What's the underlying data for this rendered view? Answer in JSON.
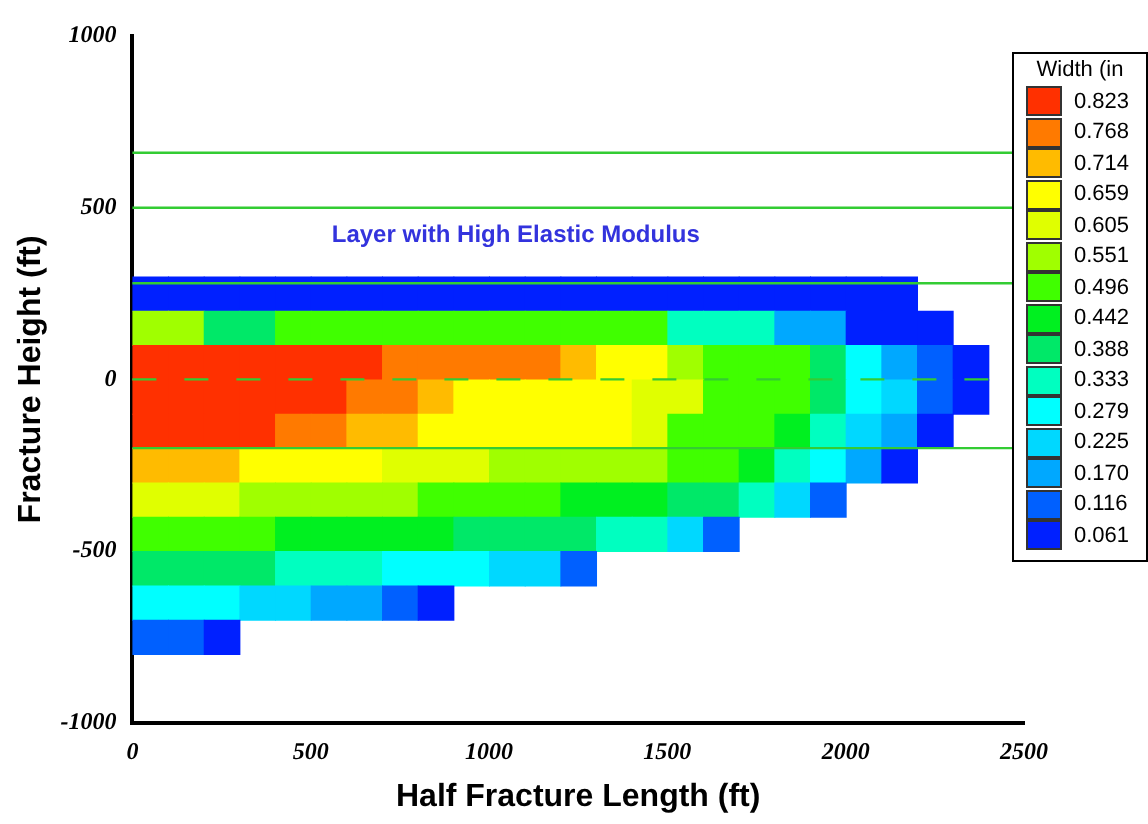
{
  "chart_data": {
    "type": "heatmap",
    "xlabel": "Half Fracture Length (ft)",
    "ylabel": "Fracture Height (ft)",
    "clabel": "Width (in",
    "x": [
      50,
      150,
      250,
      350,
      450,
      550,
      650,
      750,
      850,
      950,
      1050,
      1150,
      1250,
      1350,
      1450,
      1550,
      1650,
      1750,
      1850,
      1950,
      2050,
      2150,
      2250,
      2350
    ],
    "y": [
      250,
      150,
      50,
      -50,
      -150,
      -250,
      -350,
      -450,
      -550,
      -650,
      -750
    ],
    "cells": [
      [
        0.061,
        0.061,
        0.061,
        0.061,
        0.061,
        0.061,
        0.061,
        0.061,
        0.061,
        0.061,
        0.061,
        0.061,
        0.061,
        0.061,
        0.061,
        0.061,
        0.061,
        0.061,
        0.061,
        0.061,
        0.061,
        0.061,
        null,
        null
      ],
      [
        0.551,
        0.551,
        0.388,
        0.388,
        0.496,
        0.496,
        0.496,
        0.496,
        0.496,
        0.496,
        0.496,
        0.496,
        0.496,
        0.496,
        0.496,
        0.333,
        0.333,
        0.333,
        0.17,
        0.17,
        0.061,
        0.061,
        0.061,
        null
      ],
      [
        0.823,
        0.823,
        0.823,
        0.823,
        0.823,
        0.823,
        0.823,
        0.768,
        0.768,
        0.768,
        0.768,
        0.768,
        0.714,
        0.659,
        0.659,
        0.551,
        0.496,
        0.496,
        0.496,
        0.388,
        0.279,
        0.17,
        0.116,
        0.061
      ],
      [
        0.823,
        0.823,
        0.823,
        0.823,
        0.823,
        0.823,
        0.768,
        0.768,
        0.714,
        0.659,
        0.659,
        0.659,
        0.659,
        0.659,
        0.605,
        0.605,
        0.496,
        0.496,
        0.496,
        0.388,
        0.279,
        0.225,
        0.116,
        0.061
      ],
      [
        0.823,
        0.823,
        0.823,
        0.823,
        0.768,
        0.768,
        0.714,
        0.714,
        0.659,
        0.659,
        0.659,
        0.659,
        0.659,
        0.659,
        0.605,
        0.496,
        0.496,
        0.496,
        0.442,
        0.333,
        0.225,
        0.17,
        0.061,
        null
      ],
      [
        0.714,
        0.714,
        0.714,
        0.659,
        0.659,
        0.659,
        0.659,
        0.605,
        0.605,
        0.605,
        0.551,
        0.551,
        0.551,
        0.551,
        0.551,
        0.496,
        0.496,
        0.442,
        0.333,
        0.279,
        0.17,
        0.061,
        null,
        null
      ],
      [
        0.605,
        0.605,
        0.605,
        0.551,
        0.551,
        0.551,
        0.551,
        0.551,
        0.496,
        0.496,
        0.496,
        0.496,
        0.442,
        0.442,
        0.442,
        0.388,
        0.388,
        0.333,
        0.225,
        0.116,
        null,
        null,
        null,
        null
      ],
      [
        0.496,
        0.496,
        0.496,
        0.496,
        0.442,
        0.442,
        0.442,
        0.442,
        0.442,
        0.388,
        0.388,
        0.388,
        0.388,
        0.333,
        0.333,
        0.225,
        0.116,
        null,
        null,
        null,
        null,
        null,
        null,
        null
      ],
      [
        0.388,
        0.388,
        0.388,
        0.388,
        0.333,
        0.333,
        0.333,
        0.279,
        0.279,
        0.279,
        0.225,
        0.225,
        0.116,
        null,
        null,
        null,
        null,
        null,
        null,
        null,
        null,
        null,
        null,
        null
      ],
      [
        0.279,
        0.279,
        0.279,
        0.225,
        0.225,
        0.17,
        0.17,
        0.116,
        0.061,
        null,
        null,
        null,
        null,
        null,
        null,
        null,
        null,
        null,
        null,
        null,
        null,
        null,
        null,
        null
      ],
      [
        0.116,
        0.116,
        0.061,
        null,
        null,
        null,
        null,
        null,
        null,
        null,
        null,
        null,
        null,
        null,
        null,
        null,
        null,
        null,
        null,
        null,
        null,
        null,
        null,
        null
      ]
    ],
    "cticks": [
      0.061,
      0.116,
      {
        "value": 0.17,
        "label": "0.170"
      },
      0.225,
      0.279,
      0.333,
      0.388,
      0.442,
      0.496,
      0.551,
      0.605,
      0.659,
      0.714,
      0.768,
      0.823
    ],
    "colors": [
      "#0020ff",
      "#0060ff",
      "#00a8ff",
      "#00d8ff",
      "#00ffff",
      "#00ffc0",
      "#00e868",
      "#00f020",
      "#40ff00",
      "#a0ff00",
      "#e0ff00",
      "#ffff00",
      "#ffbb00",
      "#ff7a00",
      "#ff3000"
    ],
    "xlim": [
      0,
      2500
    ],
    "xticks": [
      0,
      500,
      1000,
      1500,
      2000,
      2500
    ],
    "ylim": [
      -1000,
      1000
    ],
    "yticks": [
      -1000,
      -500,
      0,
      500,
      1000
    ],
    "grid": false,
    "ref_lines": [
      {
        "axis": "y",
        "value": 660,
        "color": "#33cc33"
      },
      {
        "axis": "y",
        "value": 500,
        "color": "#33cc33"
      },
      {
        "axis": "y",
        "value": 280,
        "color": "#33cc33"
      },
      {
        "axis": "y",
        "value": 0,
        "color": "#33cc33",
        "line_style": "dashed"
      },
      {
        "axis": "y",
        "value": -200,
        "color": "#33cc33"
      }
    ],
    "annotations": [
      "Layer with High Elastic Modulus"
    ]
  }
}
